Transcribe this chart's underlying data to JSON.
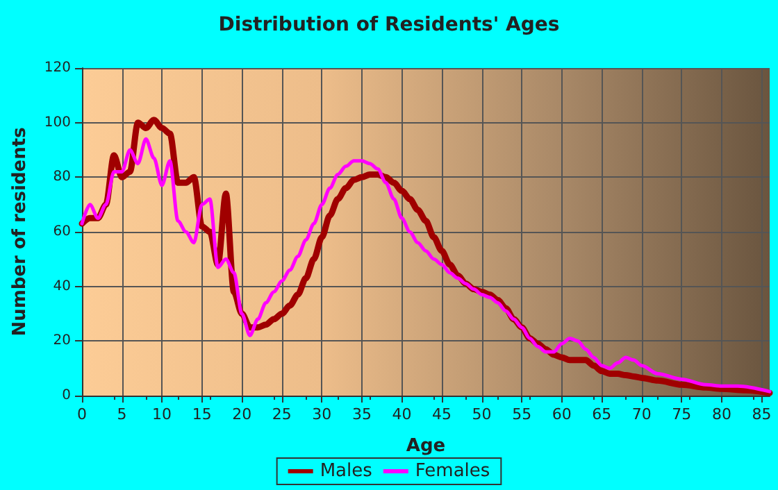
{
  "chart_data": {
    "type": "line",
    "title": "Distribution of Residents' Ages",
    "xlabel": "Age",
    "ylabel": "Number of residents",
    "xlim": [
      0,
      86
    ],
    "xticks": [
      0,
      5,
      10,
      15,
      20,
      25,
      30,
      35,
      40,
      45,
      50,
      55,
      60,
      65,
      70,
      75,
      80,
      85
    ],
    "ylim": [
      0,
      120
    ],
    "yticks": [
      0,
      20,
      40,
      60,
      80,
      100,
      120
    ],
    "grid": true,
    "legend": "bottom",
    "marker": "none",
    "line_style": "solid",
    "series": [
      {
        "name": "Males",
        "color": "#a00000",
        "x": [
          0,
          1,
          2,
          3,
          4,
          5,
          6,
          7,
          8,
          9,
          10,
          11,
          12,
          13,
          14,
          15,
          16,
          17,
          18,
          19,
          20,
          21,
          22,
          23,
          24,
          25,
          26,
          27,
          28,
          29,
          30,
          31,
          32,
          33,
          34,
          35,
          36,
          37,
          38,
          39,
          40,
          41,
          42,
          43,
          44,
          45,
          46,
          47,
          48,
          49,
          50,
          51,
          52,
          53,
          54,
          55,
          56,
          57,
          58,
          59,
          60,
          61,
          62,
          63,
          64,
          65,
          66,
          67,
          68,
          69,
          70,
          72,
          75,
          78,
          80,
          83,
          86
        ],
        "values": [
          63,
          65,
          65,
          70,
          88,
          80,
          82,
          100,
          98,
          101,
          98,
          96,
          78,
          78,
          80,
          62,
          60,
          48,
          74,
          38,
          30,
          25,
          25,
          26,
          28,
          30,
          33,
          37,
          43,
          50,
          58,
          66,
          72,
          76,
          79,
          80,
          81,
          81,
          80,
          78,
          75,
          72,
          68,
          64,
          58,
          53,
          48,
          44,
          41,
          39,
          38,
          37,
          35,
          32,
          28,
          25,
          21,
          19,
          17,
          15,
          14,
          13,
          13,
          13,
          11,
          9,
          8,
          8,
          7.5,
          7,
          6.5,
          5.5,
          4,
          3,
          2.5,
          2,
          1
        ]
      },
      {
        "name": "Females",
        "color": "#ff00ff",
        "x": [
          0,
          1,
          2,
          3,
          4,
          5,
          6,
          7,
          8,
          9,
          10,
          11,
          12,
          13,
          14,
          15,
          16,
          17,
          18,
          19,
          20,
          21,
          22,
          23,
          24,
          25,
          26,
          27,
          28,
          29,
          30,
          31,
          32,
          33,
          34,
          35,
          36,
          37,
          38,
          39,
          40,
          41,
          42,
          43,
          44,
          45,
          46,
          47,
          48,
          49,
          50,
          51,
          52,
          53,
          54,
          55,
          56,
          57,
          58,
          59,
          60,
          61,
          62,
          63,
          64,
          65,
          66,
          67,
          68,
          69,
          70,
          72,
          75,
          78,
          80,
          82,
          86
        ],
        "values": [
          63,
          70,
          65,
          70,
          82,
          82,
          90,
          85,
          94,
          87,
          77,
          86,
          64,
          60,
          56,
          70,
          72,
          47,
          50,
          45,
          30,
          22,
          28,
          34,
          38,
          42,
          46,
          51,
          57,
          63,
          70,
          76,
          81,
          84,
          86,
          86,
          85,
          83,
          78,
          72,
          65,
          60,
          56,
          53,
          50,
          48,
          45,
          43,
          41,
          39,
          37,
          36,
          34,
          31,
          28,
          25,
          21,
          18,
          16,
          16,
          19,
          21,
          20,
          17,
          14,
          11,
          10,
          12,
          14,
          13,
          11,
          8,
          6,
          4,
          3.5,
          3.5,
          1.5
        ]
      }
    ]
  }
}
